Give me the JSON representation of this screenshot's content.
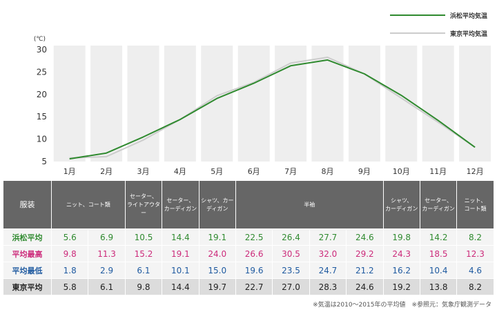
{
  "chart_data": {
    "type": "line",
    "categories": [
      "1月",
      "2月",
      "3月",
      "4月",
      "5月",
      "6月",
      "7月",
      "8月",
      "9月",
      "10月",
      "11月",
      "12月"
    ],
    "unit": "(℃)",
    "ylim": [
      5,
      30
    ],
    "yticks": [
      5,
      10,
      15,
      20,
      25,
      30
    ],
    "grid": "vertical column bands",
    "legend_position": "top-right",
    "series": [
      {
        "name": "浜松平均気温",
        "color": "#2f8a2f",
        "values": [
          5.6,
          6.9,
          10.5,
          14.4,
          19.1,
          22.5,
          26.4,
          27.7,
          24.6,
          19.8,
          14.2,
          8.2
        ]
      },
      {
        "name": "東京平均気温",
        "color": "#cccccc",
        "values": [
          5.8,
          6.1,
          9.8,
          14.4,
          19.7,
          22.7,
          27.0,
          28.3,
          24.6,
          19.2,
          13.8,
          8.2
        ]
      }
    ]
  },
  "table": {
    "clothing_label": "服装",
    "clothing": [
      {
        "span": 2,
        "lines": [
          "ニット、コート類"
        ]
      },
      {
        "span": 1,
        "lines": [
          "セーター、",
          "ライトアウター"
        ]
      },
      {
        "span": 1,
        "lines": [
          "セーター、",
          "カーディガン"
        ]
      },
      {
        "span": 1,
        "lines": [
          "シャツ、カーディガン"
        ]
      },
      {
        "span": 4,
        "lines": [
          "半袖"
        ]
      },
      {
        "span": 1,
        "lines": [
          "シャツ、",
          "カーディガン"
        ]
      },
      {
        "span": 1,
        "lines": [
          "セーター、",
          "カーディガン"
        ]
      },
      {
        "span": 1,
        "lines": [
          "ニット、",
          "コート類"
        ]
      }
    ],
    "rows": [
      {
        "key": "r-hamamatsu",
        "label": "浜松平均",
        "values": [
          "5.6",
          "6.9",
          "10.5",
          "14.4",
          "19.1",
          "22.5",
          "26.4",
          "27.7",
          "24.6",
          "19.8",
          "14.2",
          "8.2"
        ]
      },
      {
        "key": "r-high",
        "label": "平均最高",
        "values": [
          "9.8",
          "11.3",
          "15.2",
          "19.1",
          "24.0",
          "26.6",
          "30.5",
          "32.0",
          "29.2",
          "24.3",
          "18.5",
          "12.3"
        ]
      },
      {
        "key": "r-low",
        "label": "平均最低",
        "values": [
          "1.8",
          "2.9",
          "6.1",
          "10.1",
          "15.0",
          "19.6",
          "23.5",
          "24.7",
          "21.2",
          "16.2",
          "10.4",
          "4.6"
        ]
      },
      {
        "key": "r-tokyo",
        "label": "東京平均",
        "values": [
          "5.8",
          "6.1",
          "9.8",
          "14.4",
          "19.7",
          "22.7",
          "27.0",
          "28.3",
          "24.6",
          "19.2",
          "13.8",
          "8.2"
        ]
      }
    ]
  },
  "note": "※気温は2010～2015年の平均値　※参照元：気象庁観測データ"
}
